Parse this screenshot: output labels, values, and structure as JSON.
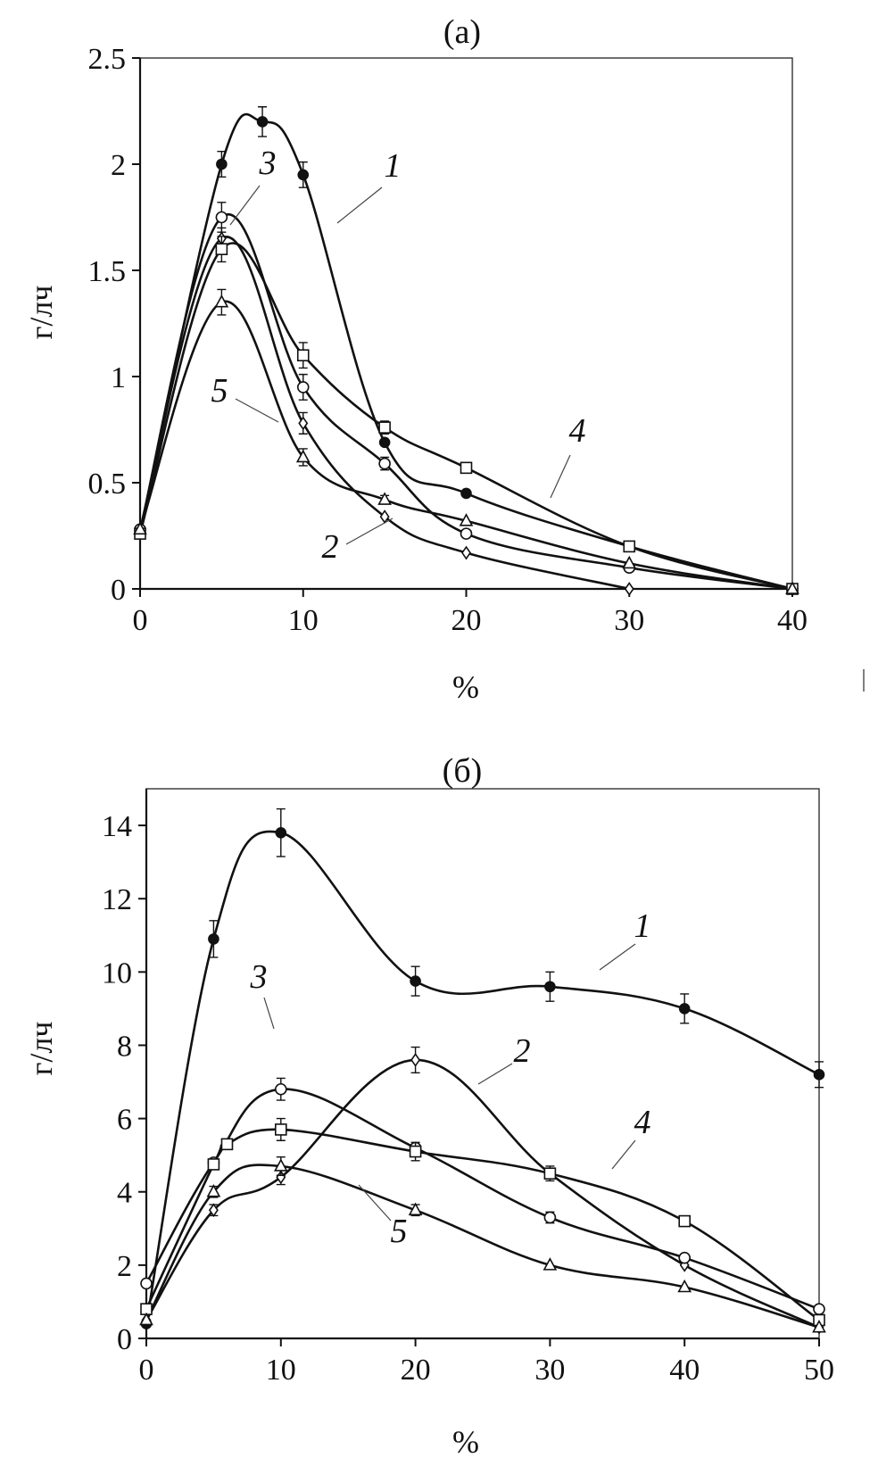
{
  "chart_data": [
    {
      "panel_label": "(а)",
      "type": "line",
      "xlabel": "%",
      "ylabel": "г/лч",
      "xlim": [
        0,
        40
      ],
      "ylim": [
        0,
        2.5
      ],
      "xticks": [
        0,
        10,
        20,
        30,
        40
      ],
      "yticks": [
        0,
        0.5,
        1,
        1.5,
        2,
        2.5
      ],
      "grid": false,
      "series": [
        {
          "name": "1",
          "marker": "filled-circle",
          "x": [
            0,
            5,
            7.5,
            10,
            15,
            20,
            30,
            40
          ],
          "y": [
            0.26,
            2.0,
            2.2,
            1.95,
            0.69,
            0.45,
            0.2,
            0.0
          ],
          "err": [
            0,
            0.06,
            0.07,
            0.06,
            0,
            0,
            0,
            0
          ]
        },
        {
          "name": "2",
          "marker": "diamond",
          "x": [
            0,
            5,
            10,
            15,
            20,
            30
          ],
          "y": [
            0.28,
            1.65,
            0.78,
            0.34,
            0.17,
            0.0
          ],
          "err": [
            0,
            0.05,
            0.05,
            0,
            0,
            0
          ]
        },
        {
          "name": "3",
          "marker": "open-circle",
          "x": [
            0,
            5,
            10,
            15,
            20,
            30,
            40
          ],
          "y": [
            0.28,
            1.75,
            0.95,
            0.59,
            0.26,
            0.1,
            0.0
          ],
          "err": [
            0,
            0.07,
            0.06,
            0.03,
            0,
            0,
            0
          ]
        },
        {
          "name": "4",
          "marker": "open-square",
          "x": [
            0,
            5,
            10,
            15,
            20,
            30,
            40
          ],
          "y": [
            0.26,
            1.6,
            1.1,
            0.76,
            0.57,
            0.2,
            0.0
          ],
          "err": [
            0,
            0.06,
            0.06,
            0.03,
            0,
            0,
            0
          ]
        },
        {
          "name": "5",
          "marker": "open-triangle",
          "x": [
            0,
            5,
            10,
            15,
            20,
            30,
            40
          ],
          "y": [
            0.28,
            1.35,
            0.62,
            0.42,
            0.32,
            0.12,
            0.0
          ],
          "err": [
            0,
            0.06,
            0.04,
            0.02,
            0,
            0,
            0
          ]
        }
      ]
    },
    {
      "panel_label": "(б)",
      "type": "line",
      "xlabel": "%",
      "ylabel": "г/лч",
      "xlim": [
        0,
        50
      ],
      "ylim": [
        0,
        15
      ],
      "xticks": [
        0,
        10,
        20,
        30,
        40,
        50
      ],
      "yticks": [
        0,
        2,
        4,
        6,
        8,
        10,
        12,
        14
      ],
      "grid": false,
      "series": [
        {
          "name": "1",
          "marker": "filled-circle",
          "x": [
            0,
            5,
            10,
            20,
            30,
            40,
            50
          ],
          "y": [
            0.4,
            10.9,
            13.8,
            9.75,
            9.6,
            9.0,
            7.2
          ],
          "err": [
            0,
            0.5,
            0.65,
            0.4,
            0.4,
            0.4,
            0.35
          ]
        },
        {
          "name": "2",
          "marker": "diamond",
          "x": [
            0,
            5,
            10,
            20,
            30,
            40,
            50
          ],
          "y": [
            0.5,
            3.5,
            4.4,
            7.6,
            4.5,
            2.0,
            0.3
          ],
          "err": [
            0,
            0.15,
            0.2,
            0.35,
            0,
            0,
            0
          ]
        },
        {
          "name": "3",
          "marker": "open-circle",
          "x": [
            0,
            5,
            10,
            20,
            30,
            40,
            50
          ],
          "y": [
            1.5,
            4.8,
            6.8,
            5.2,
            3.3,
            2.2,
            0.8
          ],
          "err": [
            0,
            0,
            0.3,
            0,
            0.15,
            0,
            0
          ]
        },
        {
          "name": "4",
          "marker": "open-square",
          "x": [
            0,
            5,
            6,
            10,
            20,
            30,
            40,
            50
          ],
          "y": [
            0.8,
            4.75,
            5.3,
            5.7,
            5.1,
            4.5,
            3.2,
            0.5
          ],
          "err": [
            0,
            0,
            0,
            0.3,
            0.25,
            0.2,
            0,
            0
          ]
        },
        {
          "name": "5",
          "marker": "open-triangle",
          "x": [
            0,
            5,
            10,
            20,
            30,
            40,
            50
          ],
          "y": [
            0.5,
            4.0,
            4.7,
            3.5,
            2.0,
            1.4,
            0.3
          ],
          "err": [
            0,
            0.15,
            0.25,
            0.15,
            0,
            0,
            0
          ]
        }
      ]
    }
  ]
}
